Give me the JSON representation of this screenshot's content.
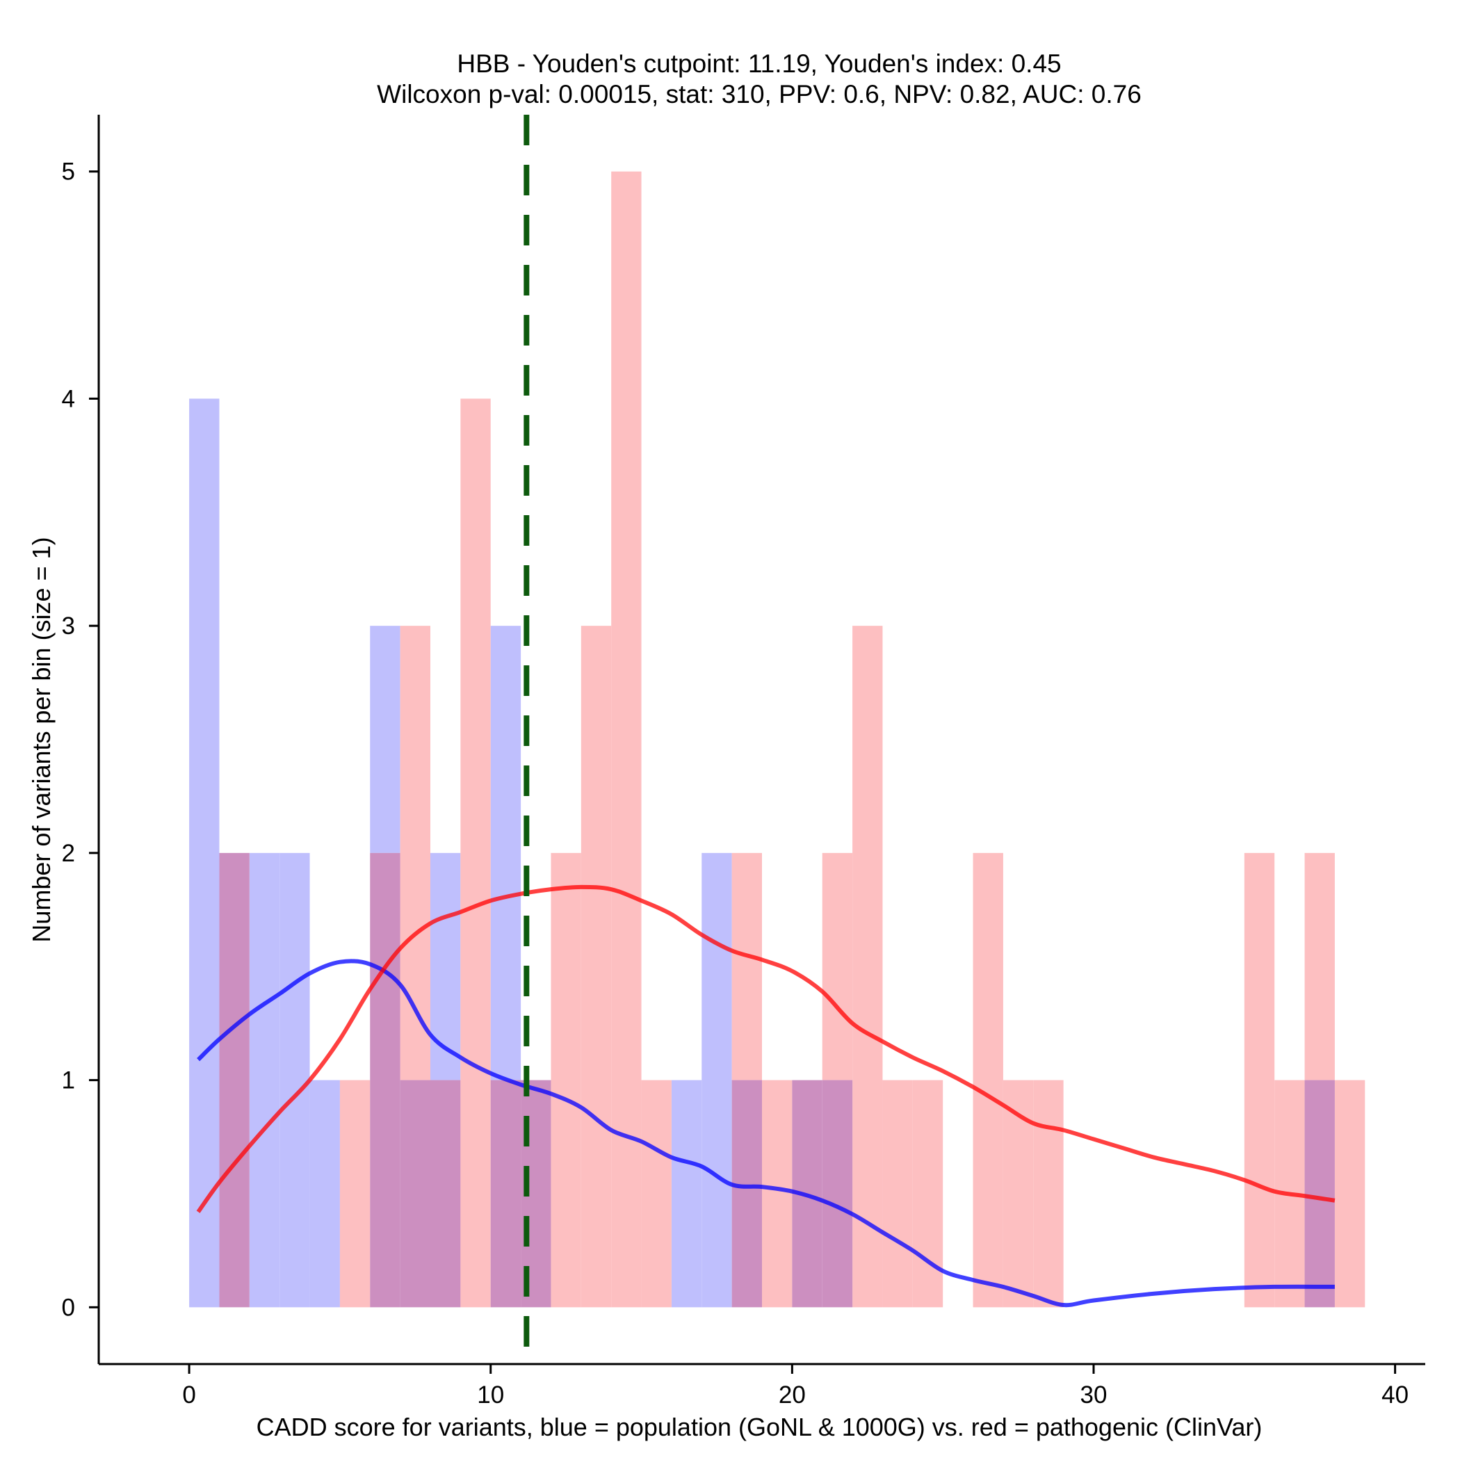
{
  "chart_data": {
    "type": "bar",
    "title": "HBB - Youden's cutpoint: 11.19, Youden's index: 0.45",
    "subtitle": "Wilcoxon p-val: 0.00015, stat: 310, PPV: 0.6, NPV: 0.82, AUC: 0.76",
    "xlabel": "CADD score for variants, blue = population (GoNL & 1000G) vs. red = pathogenic (ClinVar)",
    "ylabel": "Number of variants per bin (size = 1)",
    "xlim": [
      -3,
      41
    ],
    "ylim": [
      -0.25,
      5.25
    ],
    "xticks": [
      0,
      10,
      20,
      30,
      40
    ],
    "xtick_labels": [
      "0",
      "10",
      "20",
      "30",
      "40"
    ],
    "yticks": [
      0,
      1,
      2,
      3,
      4,
      5
    ],
    "ytick_labels": [
      "0",
      "1",
      "2",
      "3",
      "4",
      "5"
    ],
    "grid": false,
    "bin_size": 1,
    "cutpoint": 11.19,
    "series": [
      {
        "name": "population (GoNL & 1000G)",
        "color": "#0000ff",
        "hist_color": "#bfbffd",
        "bin_starts": [
          0,
          1,
          2,
          3,
          4,
          5,
          6,
          7,
          8,
          9,
          10,
          11,
          12,
          13,
          14,
          15,
          16,
          17,
          18,
          19,
          20,
          21,
          22,
          23,
          24,
          25,
          26,
          27,
          28,
          29,
          30,
          31,
          32,
          33,
          34,
          35,
          36,
          37,
          38
        ],
        "counts": [
          4,
          2,
          2,
          2,
          1,
          0,
          3,
          1,
          2,
          0,
          3,
          1,
          0,
          0,
          0,
          0,
          1,
          2,
          1,
          0,
          1,
          1,
          0,
          0,
          0,
          0,
          0,
          0,
          0,
          0,
          0,
          0,
          0,
          0,
          0,
          0,
          0,
          1,
          0
        ],
        "kde_x": [
          0.3,
          1,
          2,
          3,
          4,
          5,
          6,
          7,
          8,
          9,
          10,
          11,
          12,
          13,
          14,
          15,
          16,
          17,
          18,
          19,
          20,
          21,
          22,
          23,
          24,
          25,
          26,
          27,
          28,
          29,
          30,
          32,
          34,
          36,
          38
        ],
        "kde_y": [
          1.09,
          1.18,
          1.29,
          1.38,
          1.47,
          1.52,
          1.51,
          1.42,
          1.2,
          1.1,
          1.03,
          0.98,
          0.94,
          0.88,
          0.78,
          0.73,
          0.66,
          0.62,
          0.54,
          0.53,
          0.51,
          0.47,
          0.41,
          0.33,
          0.25,
          0.16,
          0.12,
          0.09,
          0.05,
          0.01,
          0.03,
          0.06,
          0.08,
          0.09,
          0.09
        ]
      },
      {
        "name": "pathogenic (ClinVar)",
        "color": "#ff0000",
        "hist_color": "#fdbfc1",
        "bin_starts": [
          0,
          1,
          2,
          3,
          4,
          5,
          6,
          7,
          8,
          9,
          10,
          11,
          12,
          13,
          14,
          15,
          16,
          17,
          18,
          19,
          20,
          21,
          22,
          23,
          24,
          25,
          26,
          27,
          28,
          29,
          30,
          31,
          32,
          33,
          34,
          35,
          36,
          37,
          38
        ],
        "counts": [
          0,
          2,
          0,
          0,
          0,
          1,
          2,
          3,
          1,
          4,
          1,
          1,
          2,
          3,
          5,
          1,
          0,
          0,
          2,
          1,
          1,
          2,
          3,
          1,
          1,
          0,
          2,
          1,
          1,
          0,
          0,
          0,
          0,
          0,
          0,
          2,
          1,
          2,
          1
        ],
        "kde_x": [
          0.3,
          1,
          2,
          3,
          4,
          5,
          6,
          7,
          8,
          9,
          10,
          11,
          12,
          13,
          14,
          15,
          16,
          17,
          18,
          19,
          20,
          21,
          22,
          23,
          24,
          25,
          26,
          27,
          28,
          29,
          30,
          31,
          32,
          33,
          34,
          35,
          36,
          37,
          38
        ],
        "kde_y": [
          0.42,
          0.55,
          0.71,
          0.86,
          1.0,
          1.18,
          1.4,
          1.58,
          1.69,
          1.74,
          1.79,
          1.82,
          1.84,
          1.85,
          1.84,
          1.79,
          1.73,
          1.64,
          1.57,
          1.53,
          1.48,
          1.39,
          1.25,
          1.17,
          1.1,
          1.04,
          0.97,
          0.89,
          0.81,
          0.78,
          0.74,
          0.7,
          0.66,
          0.63,
          0.6,
          0.56,
          0.51,
          0.49,
          0.47
        ]
      }
    ],
    "overlap_color": "#cc8fc0",
    "cutpoint_color": "#0d5a0d"
  }
}
